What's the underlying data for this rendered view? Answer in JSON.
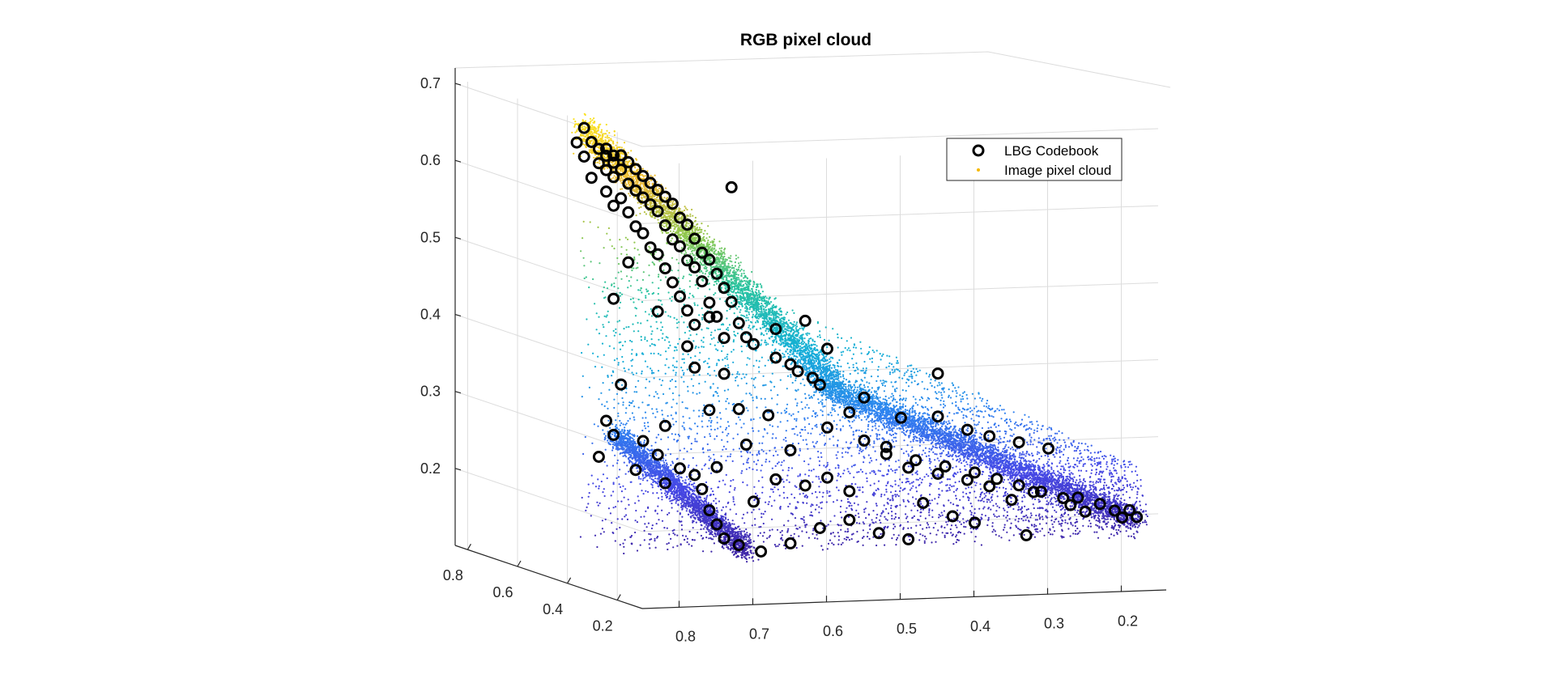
{
  "chart_data": {
    "type": "scatter",
    "title": "RGB pixel cloud",
    "xlabel": "",
    "ylabel": "",
    "zlabel": "",
    "grid": true,
    "legend_position": "top-right",
    "z_axis": {
      "range": [
        0.1,
        0.72
      ],
      "ticks": [
        "0.2",
        "0.3",
        "0.4",
        "0.5",
        "0.6",
        "0.7"
      ]
    },
    "left_axis": {
      "range": [
        0.1,
        0.85
      ],
      "ticks": [
        "0.8",
        "0.6",
        "0.4",
        "0.2"
      ]
    },
    "front_axis": {
      "range": [
        0.15,
        0.85
      ],
      "ticks": [
        "0.8",
        "0.7",
        "0.6",
        "0.5",
        "0.4",
        "0.3",
        "0.2"
      ]
    },
    "series": [
      {
        "name": "LBG Codebook",
        "marker": "circle-open",
        "color": "#000000",
        "note_projection": "points given as [front, z]",
        "points": [
          [
            0.88,
            0.71
          ],
          [
            0.89,
            0.69
          ],
          [
            0.87,
            0.69
          ],
          [
            0.86,
            0.68
          ],
          [
            0.85,
            0.68
          ],
          [
            0.85,
            0.67
          ],
          [
            0.84,
            0.67
          ],
          [
            0.83,
            0.67
          ],
          [
            0.88,
            0.67
          ],
          [
            0.86,
            0.66
          ],
          [
            0.84,
            0.66
          ],
          [
            0.82,
            0.66
          ],
          [
            0.83,
            0.65
          ],
          [
            0.81,
            0.65
          ],
          [
            0.85,
            0.65
          ],
          [
            0.87,
            0.64
          ],
          [
            0.84,
            0.64
          ],
          [
            0.8,
            0.64
          ],
          [
            0.82,
            0.63
          ],
          [
            0.79,
            0.63
          ],
          [
            0.85,
            0.62
          ],
          [
            0.81,
            0.62
          ],
          [
            0.78,
            0.62
          ],
          [
            0.83,
            0.61
          ],
          [
            0.8,
            0.61
          ],
          [
            0.77,
            0.61
          ],
          [
            0.84,
            0.6
          ],
          [
            0.79,
            0.6
          ],
          [
            0.76,
            0.6
          ],
          [
            0.82,
            0.59
          ],
          [
            0.78,
            0.59
          ],
          [
            0.75,
            0.58
          ],
          [
            0.81,
            0.57
          ],
          [
            0.77,
            0.57
          ],
          [
            0.74,
            0.57
          ],
          [
            0.8,
            0.56
          ],
          [
            0.76,
            0.55
          ],
          [
            0.73,
            0.55
          ],
          [
            0.79,
            0.54
          ],
          [
            0.75,
            0.54
          ],
          [
            0.72,
            0.53
          ],
          [
            0.78,
            0.53
          ],
          [
            0.74,
            0.52
          ],
          [
            0.71,
            0.52
          ],
          [
            0.77,
            0.51
          ],
          [
            0.73,
            0.51
          ],
          [
            0.7,
            0.5
          ],
          [
            0.76,
            0.49
          ],
          [
            0.72,
            0.49
          ],
          [
            0.69,
            0.48
          ],
          [
            0.75,
            0.47
          ],
          [
            0.71,
            0.46
          ],
          [
            0.68,
            0.46
          ],
          [
            0.74,
            0.45
          ],
          [
            0.7,
            0.44
          ],
          [
            0.67,
            0.43
          ],
          [
            0.73,
            0.43
          ],
          [
            0.69,
            0.41
          ],
          [
            0.66,
            0.41
          ],
          [
            0.65,
            0.4
          ],
          [
            0.62,
            0.38
          ],
          [
            0.6,
            0.37
          ],
          [
            0.59,
            0.36
          ],
          [
            0.57,
            0.35
          ],
          [
            0.56,
            0.34
          ],
          [
            0.62,
            0.42
          ],
          [
            0.58,
            0.43
          ],
          [
            0.55,
            0.39
          ],
          [
            0.74,
            0.4
          ],
          [
            0.73,
            0.37
          ],
          [
            0.69,
            0.36
          ],
          [
            0.67,
            0.31
          ],
          [
            0.82,
            0.52
          ],
          [
            0.84,
            0.47
          ],
          [
            0.78,
            0.45
          ],
          [
            0.71,
            0.44
          ],
          [
            0.83,
            0.35
          ],
          [
            0.77,
            0.29
          ],
          [
            0.71,
            0.31
          ],
          [
            0.63,
            0.3
          ],
          [
            0.55,
            0.28
          ],
          [
            0.52,
            0.3
          ],
          [
            0.5,
            0.32
          ],
          [
            0.45,
            0.29
          ],
          [
            0.4,
            0.29
          ],
          [
            0.36,
            0.27
          ],
          [
            0.33,
            0.26
          ],
          [
            0.29,
            0.25
          ],
          [
            0.25,
            0.24
          ],
          [
            0.5,
            0.26
          ],
          [
            0.47,
            0.25
          ],
          [
            0.43,
            0.23
          ],
          [
            0.39,
            0.22
          ],
          [
            0.35,
            0.21
          ],
          [
            0.32,
            0.2
          ],
          [
            0.29,
            0.19
          ],
          [
            0.26,
            0.18
          ],
          [
            0.23,
            0.17
          ],
          [
            0.21,
            0.17
          ],
          [
            0.18,
            0.16
          ],
          [
            0.2,
            0.15
          ],
          [
            0.16,
            0.15
          ],
          [
            0.14,
            0.15
          ],
          [
            0.13,
            0.14
          ],
          [
            0.15,
            0.14
          ],
          [
            0.22,
            0.16
          ],
          [
            0.27,
            0.18
          ],
          [
            0.3,
            0.17
          ],
          [
            0.33,
            0.19
          ],
          [
            0.36,
            0.2
          ],
          [
            0.4,
            0.21
          ],
          [
            0.44,
            0.22
          ],
          [
            0.47,
            0.24
          ],
          [
            0.85,
            0.3
          ],
          [
            0.84,
            0.28
          ],
          [
            0.8,
            0.27
          ],
          [
            0.78,
            0.25
          ],
          [
            0.75,
            0.23
          ],
          [
            0.73,
            0.22
          ],
          [
            0.72,
            0.2
          ],
          [
            0.71,
            0.17
          ],
          [
            0.7,
            0.15
          ],
          [
            0.69,
            0.13
          ],
          [
            0.67,
            0.12
          ],
          [
            0.64,
            0.11
          ],
          [
            0.6,
            0.12
          ],
          [
            0.56,
            0.14
          ],
          [
            0.52,
            0.15
          ],
          [
            0.48,
            0.13
          ],
          [
            0.44,
            0.12
          ],
          [
            0.58,
            0.2
          ],
          [
            0.55,
            0.21
          ],
          [
            0.52,
            0.19
          ],
          [
            0.6,
            0.25
          ],
          [
            0.66,
            0.26
          ],
          [
            0.62,
            0.21
          ],
          [
            0.65,
            0.18
          ],
          [
            0.7,
            0.23
          ],
          [
            0.42,
            0.17
          ],
          [
            0.38,
            0.15
          ],
          [
            0.35,
            0.14
          ],
          [
            0.28,
            0.12
          ],
          [
            0.86,
            0.25
          ],
          [
            0.81,
            0.23
          ],
          [
            0.77,
            0.21
          ],
          [
            0.4,
            0.35
          ],
          [
            0.68,
            0.62
          ]
        ]
      },
      {
        "name": "Image pixel cloud",
        "marker": "dot",
        "color": "#f5b800",
        "colormap": "parula",
        "note": "dense cloud; coloured by height from deep blue (low) to yellow (high); sampled along two bands meeting at the lower-left and a diffuse sheet between them"
      }
    ]
  }
}
